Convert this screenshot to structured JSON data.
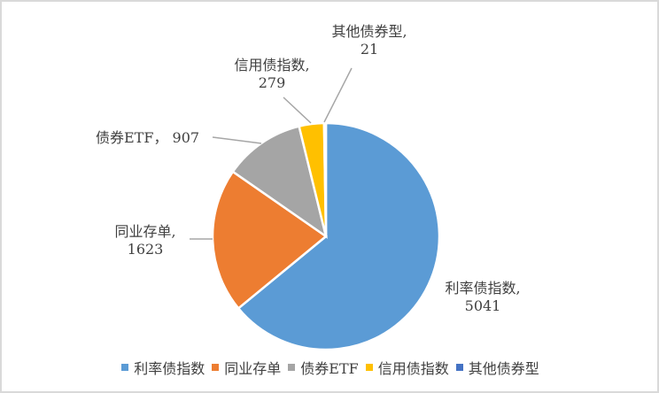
{
  "chart_data": {
    "type": "pie",
    "title": "",
    "categories": [
      "利率债指数",
      "同业存单",
      "债券ETF",
      "信用债指数",
      "其他债券型"
    ],
    "values": [
      5041,
      1623,
      907,
      279,
      21
    ],
    "colors": [
      "#5b9bd5",
      "#ed7d31",
      "#a5a5a5",
      "#ffc000",
      "#4472c4"
    ],
    "data_labels": [
      {
        "name": "利率债指数,",
        "value": "5041"
      },
      {
        "name": "同业存单,",
        "value": "1623"
      },
      {
        "name": "债券ETF，",
        "value": "907"
      },
      {
        "name": "信用债指数,",
        "value": "279"
      },
      {
        "name": "其他债券型,",
        "value": "21"
      }
    ],
    "legend_position": "bottom",
    "start_angle_deg": 0,
    "direction": "clockwise"
  },
  "labels": {
    "rate": {
      "name": "利率债指数,",
      "value": "5041"
    },
    "ncd": {
      "name": "同业存单,",
      "value": "1623"
    },
    "etf": {
      "text": "债券ETF， 907"
    },
    "credit": {
      "name": "信用债指数,",
      "value": "279"
    },
    "other": {
      "name": "其他债券型,",
      "value": "21"
    }
  },
  "legend": [
    {
      "label": "利率债指数",
      "color": "#5b9bd5"
    },
    {
      "label": "同业存单",
      "color": "#ed7d31"
    },
    {
      "label": "债券ETF",
      "color": "#a5a5a5"
    },
    {
      "label": "信用债指数",
      "color": "#ffc000"
    },
    {
      "label": "其他债券型",
      "color": "#4472c4"
    }
  ]
}
